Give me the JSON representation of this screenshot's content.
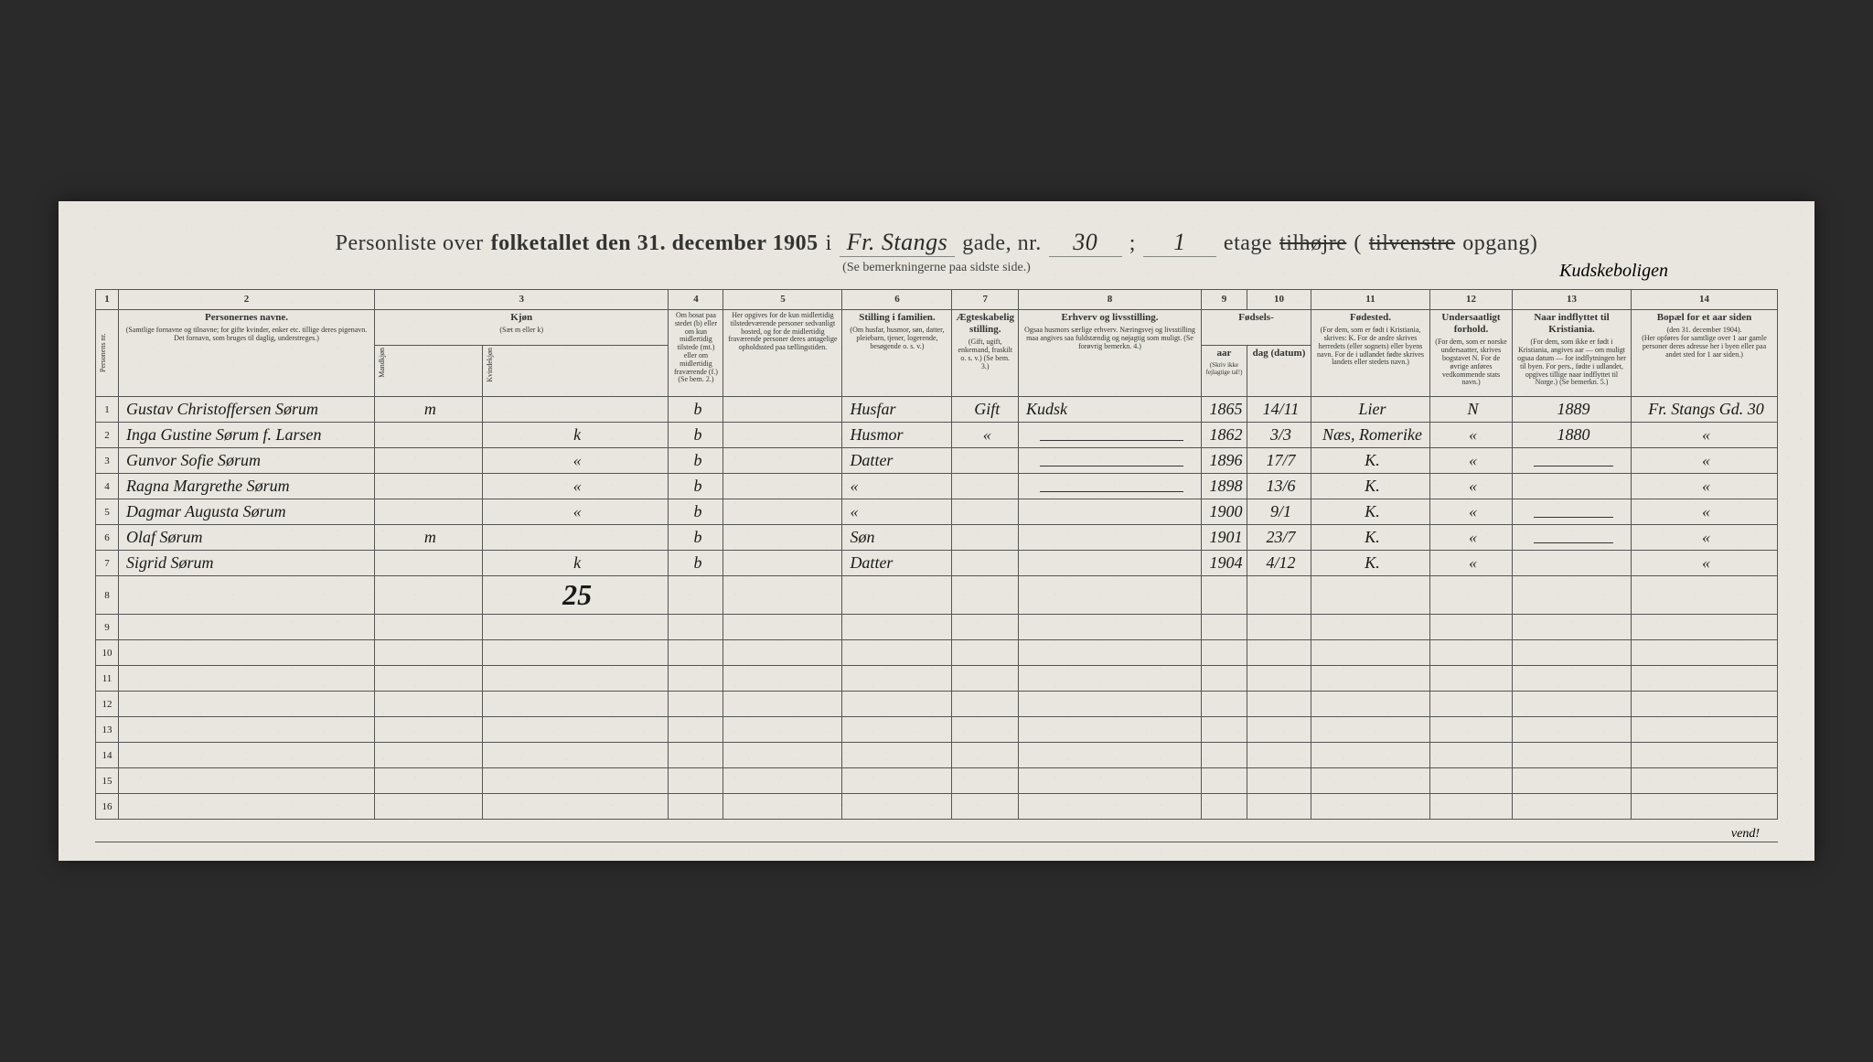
{
  "header": {
    "title_prefix": "Personliste over",
    "title_bold": "folketallet den 31. december 1905",
    "title_i": "i",
    "street": "Fr. Stangs",
    "gade": "gade, nr.",
    "nr": "30",
    "semicolon": ";",
    "etage_val": "1",
    "etage": "etage",
    "struck1": "tilhøjre",
    "struck2": "tilvenstre",
    "opgang": "opgang)",
    "subtitle": "(Se bemerkningerne paa sidste side.)",
    "below_note": "Kudskeboligen"
  },
  "columns": {
    "c1": "1",
    "c2": "2",
    "c3": "3",
    "c4": "4",
    "c5": "5",
    "c6": "6",
    "c7": "7",
    "c8": "8",
    "c9": "9",
    "c10": "10",
    "c11": "11",
    "c12": "12",
    "c13": "13",
    "c14": "14",
    "h1": "Personens nr.",
    "h2_title": "Personernes navne.",
    "h2_sub": "(Samtlige fornavne og tilnavne; for gifte kvinder, enker etc. tillige deres pigenavn. Det fornavn, som bruges til daglig, understreges.)",
    "h3_title": "Kjøn",
    "h3_sub": "(Sæt m eller k)",
    "h3a": "Mandkjøn",
    "h3b": "Kvindekjøn",
    "h4_sub": "Om bosat paa stedet (b) eller om kun midlertidig tilstede (mt.) eller om midlertidig fraværende (f.) (Se bem. 2.)",
    "h5_sub": "Her opgives for de kun midlertidig tilstedeværende personer sedvanligt bosted, og for de midlertidig fraværende personer deres antagelige opholdssted paa tællingstiden.",
    "h6_title": "Stilling i familien.",
    "h6_sub": "(Om husfar, husmor, søn, datter, pleiebarn, tjener, logerende, besøgende o. s. v.)",
    "h7_title": "Ægteskabelig stilling.",
    "h7_sub": "(Gift, ugift, enkemand, fraskilt o. s. v.) (Se bem. 3.)",
    "h8_title": "Erhverv og livsstilling.",
    "h8_sub": "Ogsaa husmors særlige erhverv. Næringsvej og livsstilling maa angives saa fuldstændig og nøjagtig som muligt. (Se forøvrig bemerkn. 4.)",
    "h9_10_title": "Fødsels-",
    "h9": "aar",
    "h10": "dag (datum)",
    "h9_10_sub": "(Skriv ikke fejlagtige tal!)",
    "h11_title": "Fødested.",
    "h11_sub": "(For dem, som er født i Kristiania, skrives: K. For de andre skrives herredets (eller sognets) eller byens navn. For de i udlandet fødte skrives landets eller stedets navn.)",
    "h12_title": "Undersaatligt forhold.",
    "h12_sub": "(For dem, som er norske undersaatter, skrives bogstavet N. For de øvrige anføres vedkommende stats navn.)",
    "h13_title": "Naar indflyttet til Kristiania.",
    "h13_sub": "(For dem, som ikke er født i Kristiania, angives aar — om muligt ogsaa datum — for indflytningen her til byen. For pers., fødte i udlandet, opgives tillige naar indflyttet til Norge.) (Se bemerkn. 5.)",
    "h14_title": "Bopæl for et aar siden",
    "h14_sub1": "(den 31. december 1904).",
    "h14_sub2": "(Her opføres for samtlige over 1 aar gamle personer deres adresse her i byen eller paa andet sted for 1 aar siden.)"
  },
  "rows": [
    {
      "n": "1",
      "name": "Gustav Christoffersen Sørum",
      "sex": "m",
      "res": "b",
      "abs": "",
      "fam": "Husfar",
      "mar": "Gift",
      "occ": "Kudsk",
      "yr": "1865",
      "day": "14/11",
      "birthplace": "Lier",
      "nat": "N",
      "moved": "1889",
      "prev": "Fr. Stangs Gd. 30"
    },
    {
      "n": "2",
      "name": "Inga Gustine Sørum f. Larsen",
      "sex": "k",
      "res": "b",
      "abs": "",
      "fam": "Husmor",
      "mar": "«",
      "occ": "—",
      "yr": "1862",
      "day": "3/3",
      "birthplace": "Næs, Romerike",
      "nat": "«",
      "moved": "1880",
      "prev": "«"
    },
    {
      "n": "3",
      "name": "Gunvor Sofie Sørum",
      "sex": "«",
      "res": "b",
      "abs": "",
      "fam": "Datter",
      "mar": "",
      "occ": "—",
      "yr": "1896",
      "day": "17/7",
      "birthplace": "K.",
      "nat": "«",
      "moved": "—",
      "prev": "«"
    },
    {
      "n": "4",
      "name": "Ragna Margrethe Sørum",
      "sex": "«",
      "res": "b",
      "abs": "",
      "fam": "«",
      "mar": "",
      "occ": "—",
      "yr": "1898",
      "day": "13/6",
      "birthplace": "K.",
      "nat": "«",
      "moved": "",
      "prev": "«"
    },
    {
      "n": "5",
      "name": "Dagmar Augusta Sørum",
      "sex": "«",
      "res": "b",
      "abs": "",
      "fam": "«",
      "mar": "",
      "occ": "",
      "yr": "1900",
      "day": "9/1",
      "birthplace": "K.",
      "nat": "«",
      "moved": "—",
      "prev": "«"
    },
    {
      "n": "6",
      "name": "Olaf Sørum",
      "sex": "m",
      "res": "b",
      "abs": "",
      "fam": "Søn",
      "mar": "",
      "occ": "",
      "yr": "1901",
      "day": "23/7",
      "birthplace": "K.",
      "nat": "«",
      "moved": "—",
      "prev": "«"
    },
    {
      "n": "7",
      "name": "Sigrid Sørum",
      "sex": "k",
      "res": "b",
      "abs": "",
      "fam": "Datter",
      "mar": "",
      "occ": "",
      "yr": "1904",
      "day": "4/12",
      "birthplace": "K.",
      "nat": "«",
      "moved": "",
      "prev": "«"
    }
  ],
  "extra_number": "25",
  "empty_rows": [
    "8",
    "9",
    "10",
    "11",
    "12",
    "13",
    "14",
    "15",
    "16"
  ],
  "footer": "vend!",
  "style": {
    "paper_bg": "#e8e6de",
    "outer_bg": "#2a2a2a",
    "border_color": "#555",
    "text_color": "#333",
    "handwriting_color": "#1a1a1a",
    "title_fontsize": 24,
    "header_fontsize": 10,
    "handwriting_fontsize": 18
  }
}
